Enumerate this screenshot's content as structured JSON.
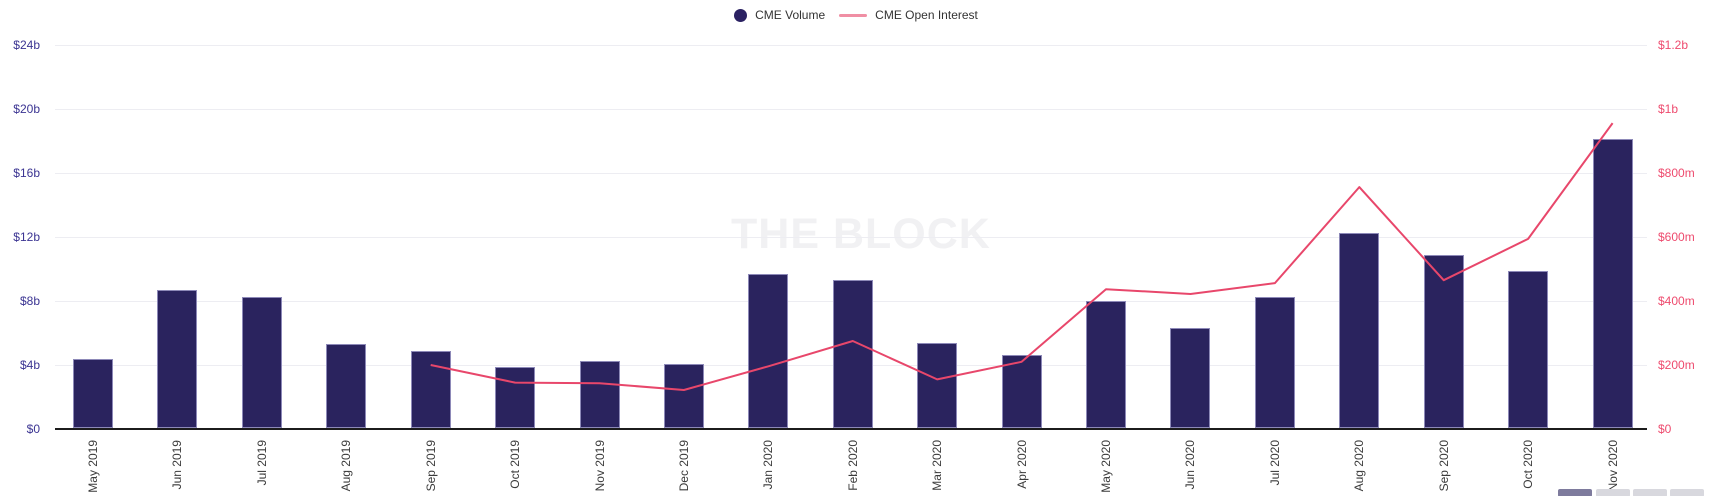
{
  "legend": {
    "items": [
      {
        "label": "CME Volume",
        "swatch": "dot",
        "color": "#2b2162"
      },
      {
        "label": "CME Open Interest",
        "swatch": "line",
        "color": "#f08fa4"
      }
    ]
  },
  "watermark": "THE BLOCK",
  "colors": {
    "bar_fill": "#2a235e",
    "bar_border": "#8d89b8",
    "line": "#e8476b",
    "left_axis_label": "#3b3492",
    "right_axis_label": "#ee4b6e",
    "x_axis_label": "#3b3b3b",
    "gridline": "#ededf2",
    "axis_line": "#1c1c1c",
    "watermark": "#f1f1f3",
    "control_button_active": "#7e7b9d",
    "control_button_inactive": "#d8d8de"
  },
  "bottom_controls": {
    "button_count": 4,
    "labels": [
      "",
      "",
      "",
      ""
    ]
  },
  "chart_data": {
    "type": "bar",
    "combo": "bar+line dual axis",
    "title": "",
    "categories": [
      "May 2019",
      "Jun 2019",
      "Jul 2019",
      "Aug 2019",
      "Sep 2019",
      "Oct 2019",
      "Nov 2019",
      "Dec 2019",
      "Jan 2020",
      "Feb 2020",
      "Mar 2020",
      "Apr 2020",
      "May 2020",
      "Jun 2020",
      "Jul 2020",
      "Aug 2020",
      "Sep 2020",
      "Oct 2020",
      "Nov 2020"
    ],
    "series": [
      {
        "name": "CME Volume",
        "type": "bar",
        "axis": "left",
        "unit": "billions USD",
        "values": [
          4.4,
          8.7,
          8.25,
          5.3,
          4.9,
          3.9,
          4.25,
          4.05,
          9.7,
          9.3,
          5.4,
          4.6,
          8.0,
          6.3,
          8.25,
          12.25,
          10.9,
          9.9,
          18.1
        ]
      },
      {
        "name": "CME Open Interest",
        "type": "line",
        "axis": "right",
        "unit": "millions USD",
        "values": [
          null,
          null,
          null,
          null,
          200,
          145,
          143,
          122,
          196,
          275,
          155,
          210,
          437,
          422,
          456,
          756,
          465,
          594,
          956
        ]
      }
    ],
    "left_axis": {
      "min": 0,
      "max": 24,
      "tick_values": [
        24,
        20,
        16,
        12,
        8,
        4,
        0
      ],
      "tick_labels": [
        "$24b",
        "$20b",
        "$16b",
        "$12b",
        "$8b",
        "$4b",
        "$0"
      ]
    },
    "right_axis": {
      "min": 0,
      "max": 1200,
      "tick_values": [
        1200,
        1000,
        800,
        600,
        400,
        200,
        0
      ],
      "tick_labels": [
        "$1.2b",
        "$1b",
        "$800m",
        "$600m",
        "$400m",
        "$200m",
        "$0"
      ]
    },
    "grid": true,
    "legend_position": "top-center",
    "x_label_rotation": -90
  }
}
